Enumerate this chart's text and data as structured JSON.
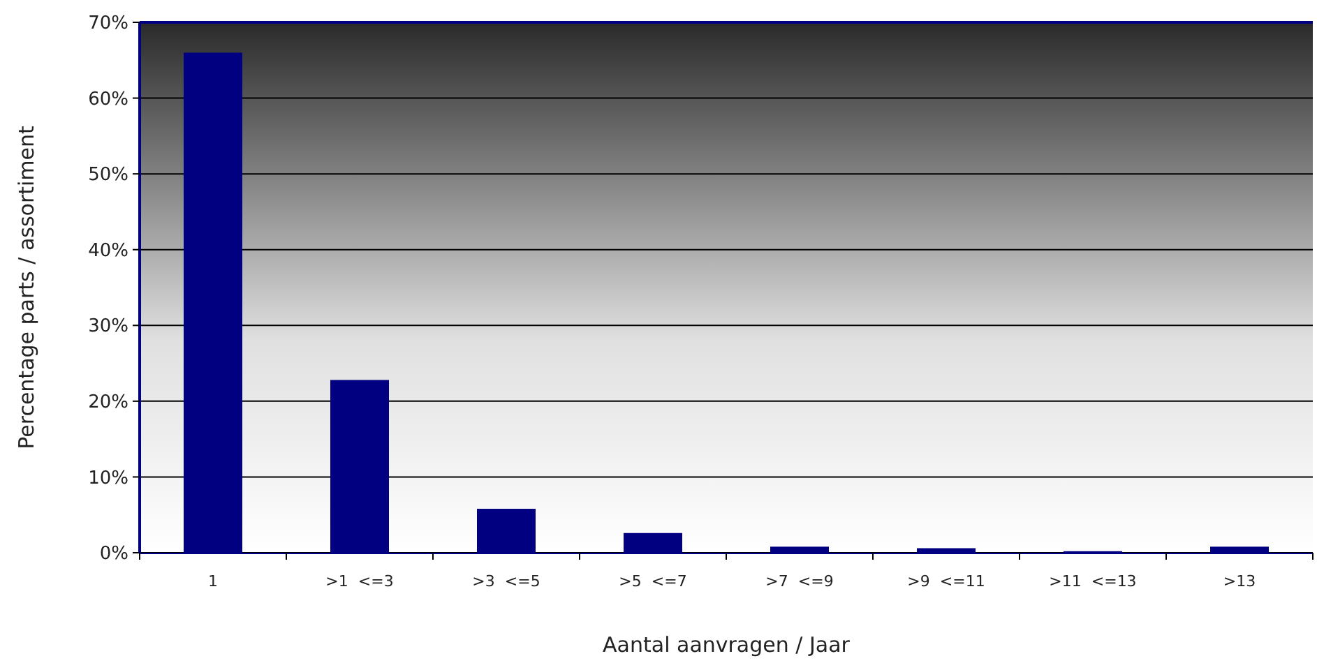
{
  "chart_data": {
    "type": "bar",
    "xlabel": "Aantal aanvragen / Jaar",
    "ylabel": "Percentage parts / assortiment",
    "categories": [
      "1",
      ">1  <=3",
      ">3  <=5",
      ">5  <=7",
      ">7  <=9",
      ">9  <=11",
      ">11  <=13",
      ">13"
    ],
    "values": [
      66,
      22.8,
      5.8,
      2.6,
      0.8,
      0.6,
      0.2,
      0.8
    ],
    "color": "#000080",
    "ylim": [
      0,
      70
    ],
    "yticks": [
      {
        "value": 0,
        "label": "0%"
      },
      {
        "value": 10,
        "label": "10%"
      },
      {
        "value": 20,
        "label": "20%"
      },
      {
        "value": 30,
        "label": "30%"
      },
      {
        "value": 40,
        "label": "40%"
      },
      {
        "value": 50,
        "label": "50%"
      },
      {
        "value": 60,
        "label": "60%"
      },
      {
        "value": 70,
        "label": "70%"
      }
    ],
    "grid": "y"
  }
}
